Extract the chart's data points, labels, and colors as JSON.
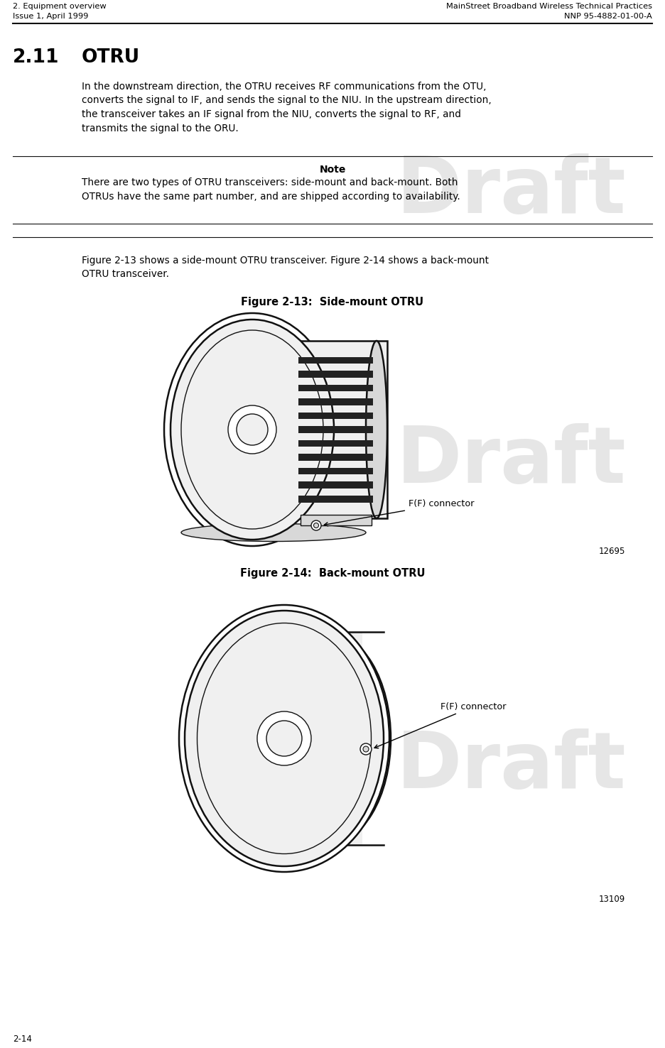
{
  "bg_color": "#ffffff",
  "header_left_line1": "2. Equipment overview",
  "header_left_line2": "Issue 1, April 1999",
  "header_right_line1": "MainStreet Broadband Wireless Technical Practices",
  "header_right_line2": "NNP 95-4882-01-00-A",
  "section_num": "2.11",
  "section_title": "OTRU",
  "body_text": "In the downstream direction, the OTRU receives RF communications from the OTU,\nconverts the signal to IF, and sends the signal to the NIU. In the upstream direction,\nthe transceiver takes an IF signal from the NIU, converts the signal to RF, and\ntransmits the signal to the ORU.",
  "note_label": "Note",
  "note_text": "There are two types of OTRU transceivers: side-mount and back-mount. Both\nOTRUs have the same part number, and are shipped according to availability.",
  "figure_ref_text": "Figure 2-13 shows a side-mount OTRU transceiver. Figure 2-14 shows a back-mount\nOTRU transceiver.",
  "fig1_title": "Figure 2-13:  Side-mount OTRU",
  "fig1_label": "F(F) connector",
  "fig1_num": "12695",
  "fig2_title": "Figure 2-14:  Back-mount OTRU",
  "fig2_label": "F(F) connector",
  "fig2_num": "13109",
  "footer_left": "2-14",
  "text_color": "#000000",
  "draft_color": "#c8c8c8",
  "edge_color": "#111111",
  "light_fill": "#f0f0f0",
  "mid_fill": "#d8d8d8",
  "dark_fill": "#222222"
}
